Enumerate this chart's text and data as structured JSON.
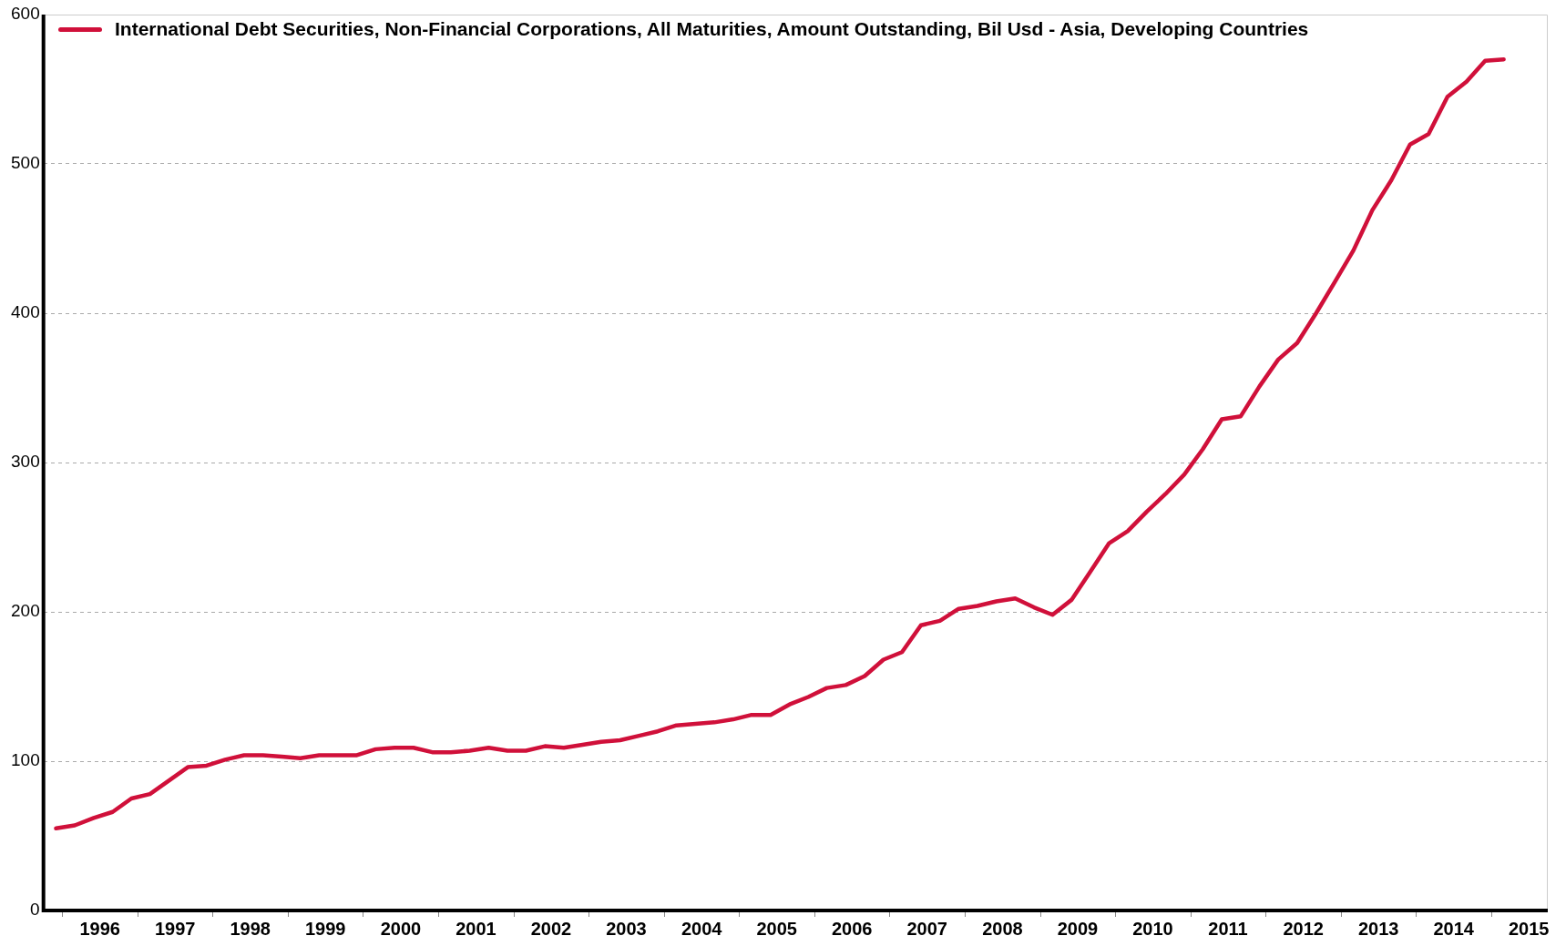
{
  "chart_data": {
    "type": "line",
    "x": [
      "1995-12",
      "1996-03",
      "1996-06",
      "1996-09",
      "1996-12",
      "1997-03",
      "1997-06",
      "1997-09",
      "1997-12",
      "1998-03",
      "1998-06",
      "1998-09",
      "1998-12",
      "1999-03",
      "1999-06",
      "1999-09",
      "1999-12",
      "2000-03",
      "2000-06",
      "2000-09",
      "2000-12",
      "2001-03",
      "2001-06",
      "2001-09",
      "2001-12",
      "2002-03",
      "2002-06",
      "2002-09",
      "2002-12",
      "2003-03",
      "2003-06",
      "2003-09",
      "2003-12",
      "2004-03",
      "2004-06",
      "2004-09",
      "2004-12",
      "2005-03",
      "2005-06",
      "2005-09",
      "2005-12",
      "2006-03",
      "2006-06",
      "2006-09",
      "2006-12",
      "2007-03",
      "2007-06",
      "2007-09",
      "2007-12",
      "2008-03",
      "2008-06",
      "2008-09",
      "2008-12",
      "2009-03",
      "2009-06",
      "2009-09",
      "2009-12",
      "2010-03",
      "2010-06",
      "2010-09",
      "2010-12",
      "2011-03",
      "2011-06",
      "2011-09",
      "2011-12",
      "2012-03",
      "2012-06",
      "2012-09",
      "2012-12",
      "2013-03",
      "2013-06",
      "2013-09",
      "2013-12",
      "2014-03",
      "2014-06",
      "2014-09",
      "2014-12",
      "2015-03"
    ],
    "series": [
      {
        "name": "International Debt Securities, Non-Financial Corporations, All Maturities, Amount Outstanding, Bil Usd - Asia, Developing Countries",
        "color": "#d0103a",
        "values": [
          55,
          57,
          62,
          66,
          75,
          78,
          87,
          96,
          97,
          101,
          104,
          104,
          103,
          102,
          104,
          104,
          104,
          108,
          109,
          109,
          106,
          106,
          107,
          109,
          107,
          107,
          110,
          109,
          111,
          113,
          114,
          117,
          120,
          124,
          125,
          126,
          128,
          131,
          131,
          138,
          143,
          149,
          151,
          157,
          168,
          173,
          191,
          194,
          202,
          204,
          207,
          209,
          203,
          198,
          208,
          227,
          246,
          254,
          267,
          279,
          292,
          309,
          329,
          331,
          351,
          369,
          380,
          400,
          421,
          442,
          469,
          489,
          513,
          520,
          545,
          555,
          569,
          570
        ]
      }
    ],
    "xlim": [
      "1995-10",
      "2015-10"
    ],
    "xticks": [
      {
        "value": "1996-01",
        "label": null
      },
      {
        "value": "1996-07",
        "label": "1996"
      },
      {
        "value": "1997-01",
        "label": null
      },
      {
        "value": "1997-07",
        "label": "1997"
      },
      {
        "value": "1998-01",
        "label": null
      },
      {
        "value": "1998-07",
        "label": "1998"
      },
      {
        "value": "1999-01",
        "label": null
      },
      {
        "value": "1999-07",
        "label": "1999"
      },
      {
        "value": "2000-01",
        "label": null
      },
      {
        "value": "2000-07",
        "label": "2000"
      },
      {
        "value": "2001-01",
        "label": null
      },
      {
        "value": "2001-07",
        "label": "2001"
      },
      {
        "value": "2002-01",
        "label": null
      },
      {
        "value": "2002-07",
        "label": "2002"
      },
      {
        "value": "2003-01",
        "label": null
      },
      {
        "value": "2003-07",
        "label": "2003"
      },
      {
        "value": "2004-01",
        "label": null
      },
      {
        "value": "2004-07",
        "label": "2004"
      },
      {
        "value": "2005-01",
        "label": null
      },
      {
        "value": "2005-07",
        "label": "2005"
      },
      {
        "value": "2006-01",
        "label": null
      },
      {
        "value": "2006-07",
        "label": "2006"
      },
      {
        "value": "2007-01",
        "label": null
      },
      {
        "value": "2007-07",
        "label": "2007"
      },
      {
        "value": "2008-01",
        "label": null
      },
      {
        "value": "2008-07",
        "label": "2008"
      },
      {
        "value": "2009-01",
        "label": null
      },
      {
        "value": "2009-07",
        "label": "2009"
      },
      {
        "value": "2010-01",
        "label": null
      },
      {
        "value": "2010-07",
        "label": "2010"
      },
      {
        "value": "2011-01",
        "label": null
      },
      {
        "value": "2011-07",
        "label": "2011"
      },
      {
        "value": "2012-01",
        "label": null
      },
      {
        "value": "2012-07",
        "label": "2012"
      },
      {
        "value": "2013-01",
        "label": null
      },
      {
        "value": "2013-07",
        "label": "2013"
      },
      {
        "value": "2014-01",
        "label": null
      },
      {
        "value": "2014-07",
        "label": "2014"
      },
      {
        "value": "2015-01",
        "label": null
      },
      {
        "value": "2015-07",
        "label": "2015"
      }
    ],
    "ylim": [
      0,
      600
    ],
    "yticks": [
      0,
      100,
      200,
      300,
      400,
      500,
      600
    ],
    "grid": "y",
    "legend": "top left",
    "marker": "none",
    "line_style": "solid"
  }
}
